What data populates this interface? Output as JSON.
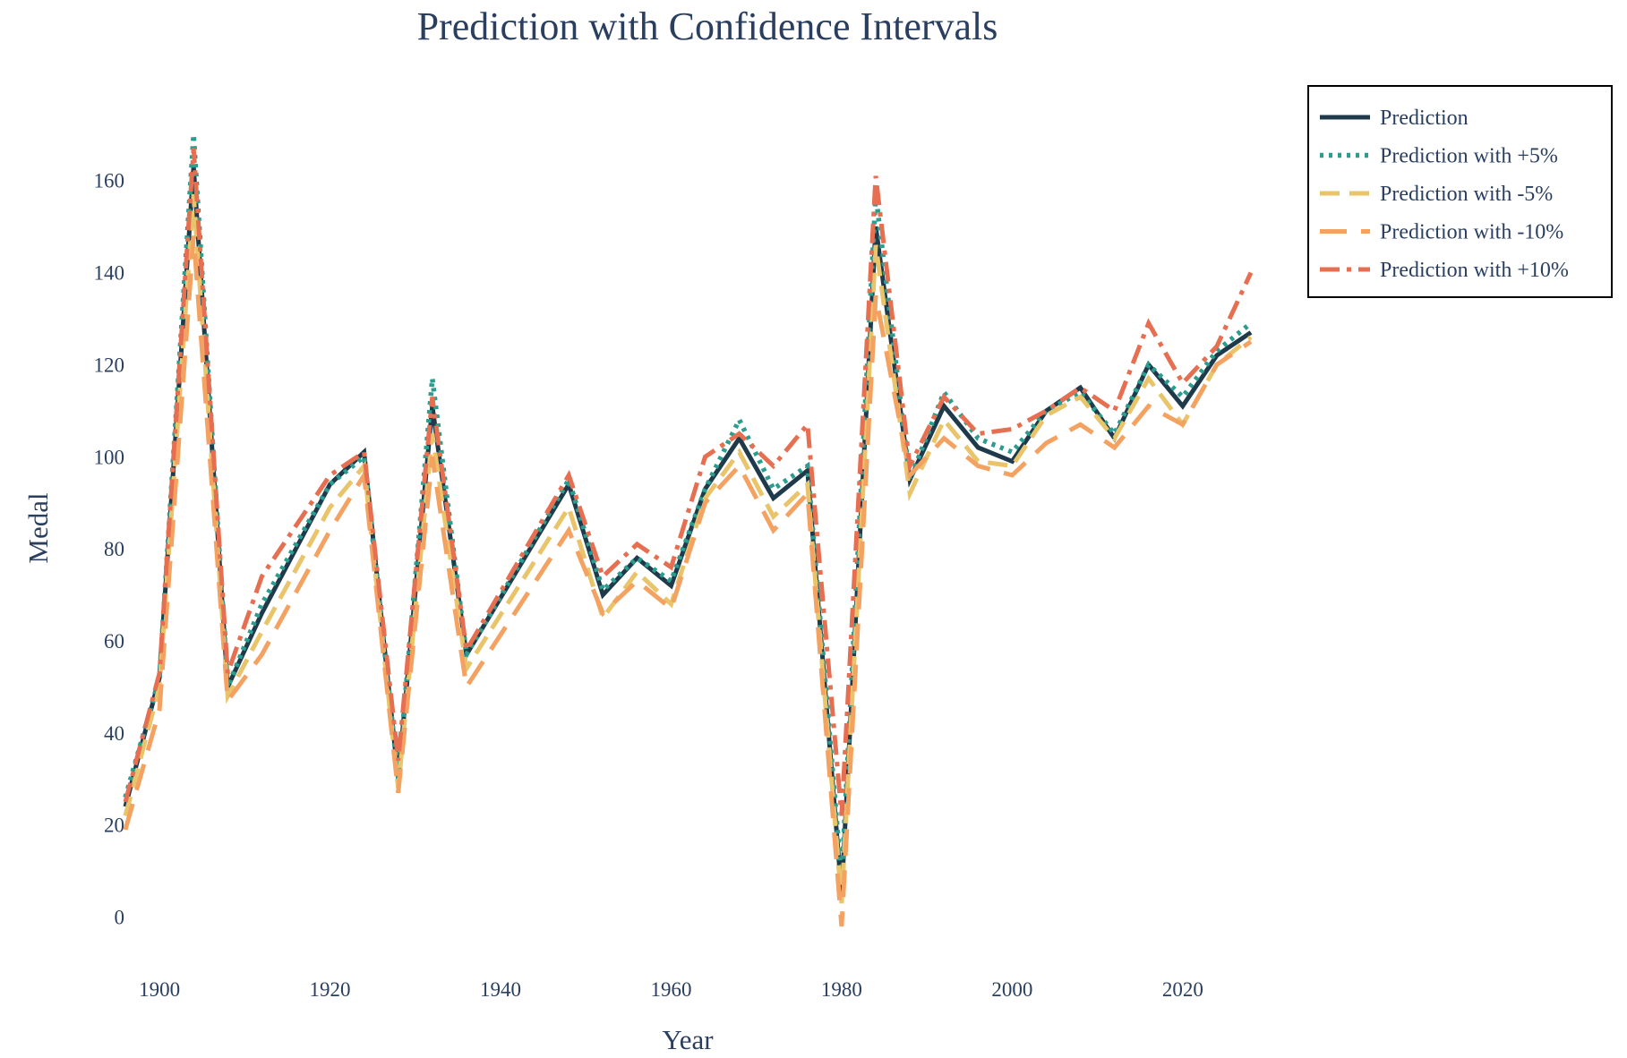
{
  "chart_data": {
    "type": "line",
    "title": "Prediction with Confidence Intervals",
    "xlabel": "Year",
    "ylabel": "Medal",
    "xlim": [
      1896,
      2028
    ],
    "ylim": [
      -10,
      172
    ],
    "xticks": [
      1900,
      1920,
      1940,
      1960,
      1980,
      2000,
      2020
    ],
    "yticks": [
      0,
      20,
      40,
      60,
      80,
      100,
      120,
      140,
      160
    ],
    "grid": false,
    "legend": "top-right",
    "x": [
      1896,
      1900,
      1904,
      1908,
      1912,
      1920,
      1924,
      1928,
      1932,
      1936,
      1948,
      1952,
      1956,
      1960,
      1964,
      1968,
      1972,
      1976,
      1980,
      1984,
      1988,
      1992,
      1996,
      2000,
      2004,
      2008,
      2012,
      2016,
      2020,
      2024,
      2028
    ],
    "series": [
      {
        "name": "Prediction",
        "color": "#1f3a4a",
        "dash": "solid",
        "values": [
          24,
          52,
          163,
          50,
          66,
          94,
          101,
          30,
          111,
          57,
          94,
          70,
          78,
          72,
          93,
          104,
          91,
          97,
          5,
          150,
          95,
          111,
          102,
          99,
          110,
          115,
          104,
          120,
          111,
          122,
          127
        ]
      },
      {
        "name": "Prediction with +5%",
        "color": "#2a9d8f",
        "dash": "dot",
        "values": [
          26,
          52,
          170,
          50,
          68,
          94,
          100,
          30,
          117,
          57,
          95,
          71,
          78,
          73,
          93,
          108,
          93,
          98,
          8,
          157,
          95,
          114,
          104,
          101,
          110,
          114,
          105,
          120,
          113,
          123,
          129
        ]
      },
      {
        "name": "Prediction with -5%",
        "color": "#e9c46a",
        "dash": "dash",
        "values": [
          22,
          50,
          157,
          48,
          62,
          89,
          98,
          28,
          105,
          54,
          89,
          65,
          75,
          68,
          91,
          101,
          87,
          94,
          3,
          146,
          92,
          108,
          99,
          98,
          109,
          113,
          104,
          117,
          107,
          120,
          126
        ]
      },
      {
        "name": "Prediction with -10%",
        "color": "#f4a261",
        "dash": "longdash",
        "values": [
          19,
          45,
          148,
          47,
          57,
          84,
          96,
          27,
          100,
          50,
          84,
          66,
          73,
          67,
          90,
          98,
          84,
          92,
          -2,
          135,
          96,
          104,
          98,
          96,
          103,
          107,
          102,
          111,
          107,
          120,
          125
        ]
      },
      {
        "name": "Prediction with +10%",
        "color": "#e76f51",
        "dash": "dashdot",
        "values": [
          25,
          53,
          167,
          53,
          74,
          96,
          101,
          34,
          113,
          58,
          96,
          74,
          81,
          76,
          100,
          105,
          98,
          107,
          22,
          161,
          98,
          113,
          105,
          106,
          110,
          115,
          110,
          129,
          116,
          124,
          140
        ]
      }
    ]
  }
}
